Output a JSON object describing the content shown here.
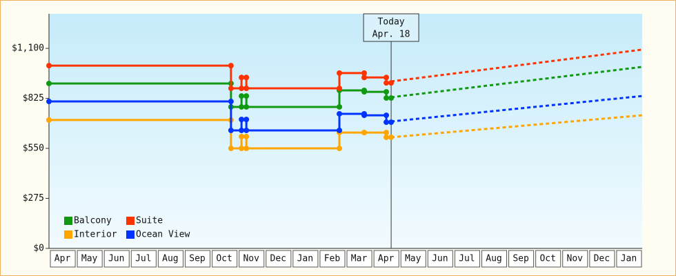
{
  "chart_data": {
    "type": "step-line",
    "categories": [
      "Apr",
      "May",
      "Jun",
      "Jul",
      "Aug",
      "Sep",
      "Oct",
      "Nov",
      "Dec",
      "Jan",
      "Feb",
      "Mar",
      "Apr",
      "May",
      "Jun",
      "Jul",
      "Aug",
      "Sep",
      "Oct",
      "Nov",
      "Dec",
      "Jan"
    ],
    "xlim": [
      0,
      22
    ],
    "ylim": [
      0,
      1290
    ],
    "yticks": [
      {
        "value": 0,
        "label": "$0"
      },
      {
        "value": 275,
        "label": "$275"
      },
      {
        "value": 550,
        "label": "$550"
      },
      {
        "value": 825,
        "label": "$825"
      },
      {
        "value": 1100,
        "label": "$1,100"
      }
    ],
    "today": {
      "x": 12.69,
      "title": "Today",
      "date": "Apr. 18"
    },
    "legend": "bottom-left",
    "series": [
      {
        "name": "Balcony",
        "color": "#119911",
        "x": [
          0,
          6.75,
          6.75,
          7.14,
          7.14,
          7.32,
          7.32,
          10.77,
          10.77,
          11.69,
          11.69,
          12.51,
          12.51,
          12.69
        ],
        "values": [
          907,
          907,
          778,
          778,
          838,
          838,
          778,
          778,
          869,
          869,
          861,
          861,
          827,
          827
        ],
        "forecast": {
          "x": [
            12.69,
            22
          ],
          "values": [
            831,
            998
          ]
        }
      },
      {
        "name": "Suite",
        "color": "#ff3300",
        "x": [
          0,
          6.75,
          6.75,
          7.14,
          7.14,
          7.32,
          7.32,
          10.77,
          10.77,
          11.69,
          11.69,
          12.51,
          12.51,
          12.69
        ],
        "values": [
          1005,
          1005,
          880,
          880,
          940,
          940,
          880,
          880,
          964,
          964,
          940,
          940,
          910,
          910
        ],
        "forecast": {
          "x": [
            12.69,
            22
          ],
          "values": [
            918,
            1093
          ]
        }
      },
      {
        "name": "Interior",
        "color": "#ffa500",
        "x": [
          0,
          6.75,
          6.75,
          7.14,
          7.14,
          7.32,
          7.32,
          10.77,
          10.77,
          11.69,
          11.69,
          12.51,
          12.51,
          12.69
        ],
        "values": [
          706,
          706,
          550,
          550,
          615,
          615,
          550,
          550,
          637,
          637,
          637,
          637,
          611,
          611
        ],
        "forecast": {
          "x": [
            12.69,
            22
          ],
          "values": [
            611,
            732
          ]
        }
      },
      {
        "name": "Ocean View",
        "color": "#0033ff",
        "x": [
          0,
          6.75,
          6.75,
          7.14,
          7.14,
          7.32,
          7.32,
          10.77,
          10.77,
          11.69,
          11.69,
          12.51,
          12.51,
          12.69
        ],
        "values": [
          808,
          808,
          649,
          649,
          709,
          709,
          649,
          649,
          740,
          740,
          732,
          732,
          694,
          694
        ],
        "forecast": {
          "x": [
            12.69,
            22
          ],
          "values": [
            698,
            838
          ]
        }
      }
    ]
  }
}
